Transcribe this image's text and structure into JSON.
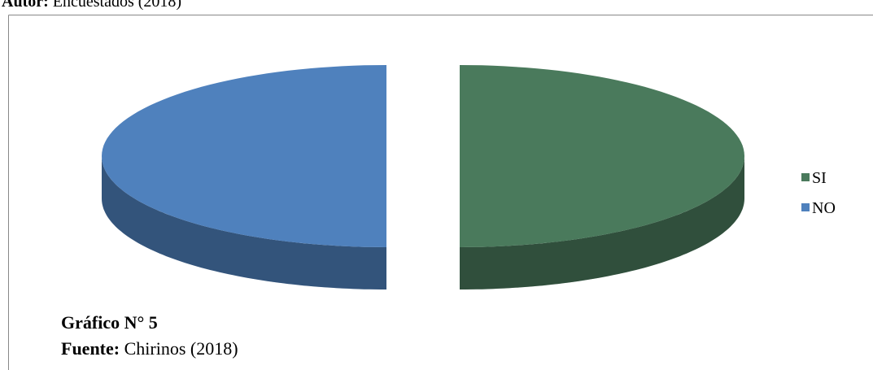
{
  "header": {
    "author_label": "Autor:",
    "author": "Encuestados (2018)"
  },
  "chart_data": {
    "type": "pie3d",
    "categories": [
      "SI",
      "NO"
    ],
    "values": [
      50,
      50
    ],
    "colors": [
      "#4a7a5c",
      "#4f81bd"
    ],
    "legend": "right"
  },
  "footer": {
    "caption": "Gráfico N° 5",
    "source_label": "Fuente:",
    "source": "Chirinos (2018)"
  }
}
